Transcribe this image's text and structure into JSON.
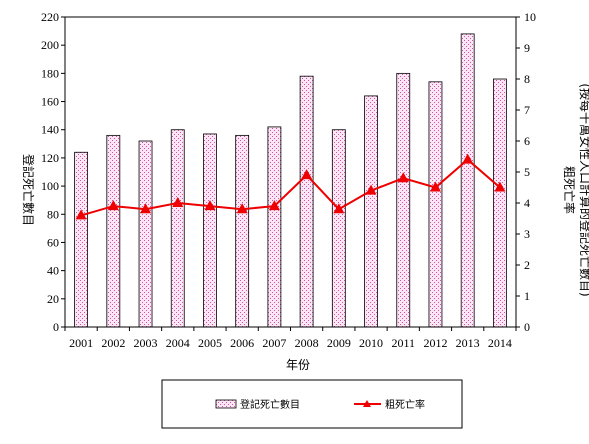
{
  "chart_data": {
    "type": "bar",
    "categories": [
      "2001",
      "2002",
      "2003",
      "2004",
      "2005",
      "2006",
      "2007",
      "2008",
      "2009",
      "2010",
      "2011",
      "2012",
      "2013",
      "2014"
    ],
    "series": [
      {
        "name": "登記死亡數目",
        "type": "bar",
        "axis": "left",
        "values": [
          124,
          136,
          132,
          140,
          137,
          136,
          142,
          178,
          140,
          164,
          180,
          174,
          208,
          176
        ]
      },
      {
        "name": "粗死亡率",
        "type": "line",
        "axis": "right",
        "values": [
          3.6,
          3.9,
          3.8,
          4.0,
          3.9,
          3.8,
          3.9,
          4.9,
          3.8,
          4.4,
          4.8,
          4.5,
          5.4,
          4.5
        ]
      }
    ],
    "xlabel": "年份",
    "ylabel_left": "登記死亡數目",
    "ylabel_right": "粗死亡率\n(按每十萬女性人口計算的登記死亡數目)",
    "ylim_left": [
      0,
      220
    ],
    "ylim_right": [
      0,
      10
    ],
    "yticks_left": [
      "0",
      "20",
      "40",
      "60",
      "80",
      "100",
      "120",
      "140",
      "160",
      "180",
      "200",
      "220"
    ],
    "yticks_right": [
      "0",
      "1",
      "2",
      "3",
      "4",
      "5",
      "6",
      "7",
      "8",
      "9",
      "10"
    ],
    "grid": false,
    "legend_position": "bottom",
    "colors": {
      "bar_fill": "#f2c6e6",
      "bar_stroke": "#000000",
      "line": "#ee0000"
    }
  }
}
